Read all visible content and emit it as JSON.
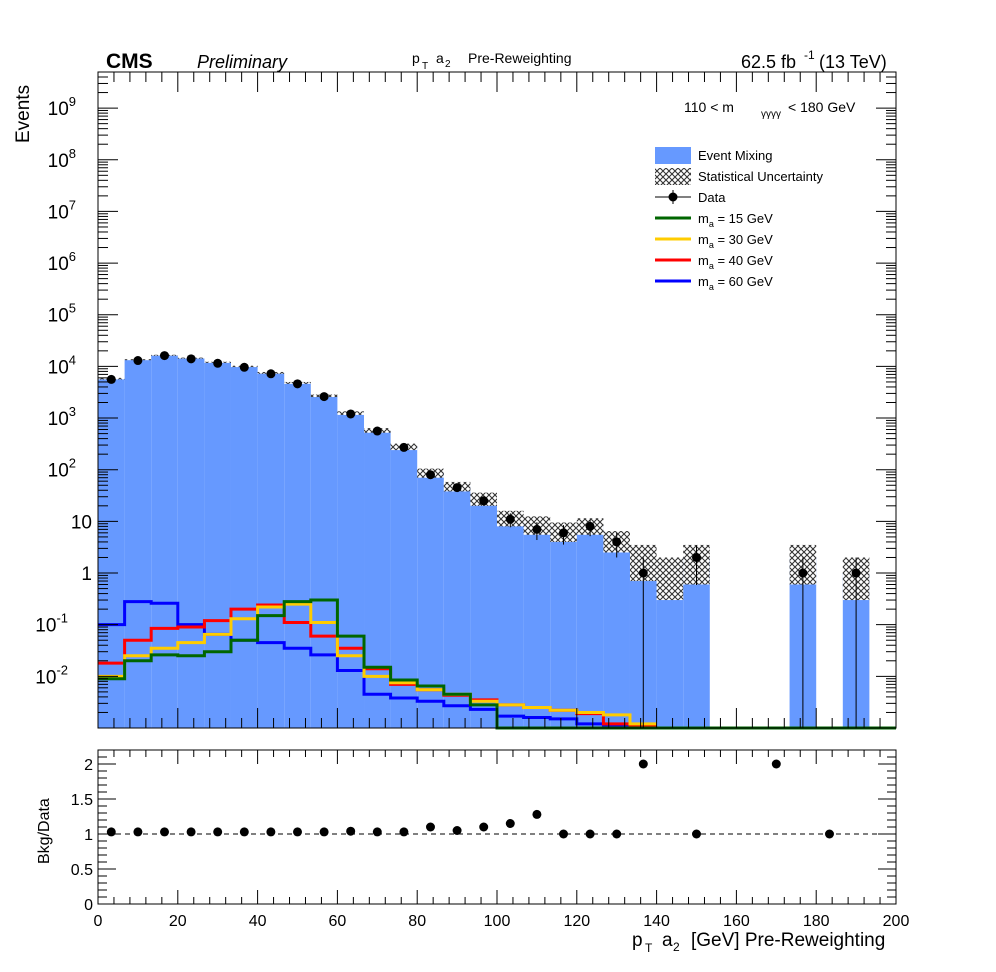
{
  "header": {
    "experiment": "CMS",
    "status": "Preliminary",
    "plot_label_main": "p",
    "plot_label_sub": "T",
    "plot_label_obj": "a",
    "plot_label_obj_sub": "2",
    "plot_label_rest": "Pre-Reweighting",
    "lumi_main": "62.5 fb",
    "lumi_sup": "-1",
    "lumi_energy": "(13 TeV)"
  },
  "selection": {
    "pre": "110 < m",
    "sub": "γγγγ",
    "post": "< 180 GeV"
  },
  "colors": {
    "event_mixing": "#6699ff",
    "ma15": "#006600",
    "ma30": "#ffcc00",
    "ma40": "#ff0000",
    "ma60": "#0000ff",
    "data": "#000000"
  },
  "legend": [
    {
      "key": "mix",
      "label": "Event Mixing"
    },
    {
      "key": "stat",
      "label": "Statistical Uncertainty"
    },
    {
      "key": "data",
      "label": "Data"
    },
    {
      "key": "ma15",
      "pre": "m",
      "sub": "a",
      "post": " = 15 GeV"
    },
    {
      "key": "ma30",
      "pre": "m",
      "sub": "a",
      "post": " = 30 GeV"
    },
    {
      "key": "ma40",
      "pre": "m",
      "sub": "a",
      "post": " = 40 GeV"
    },
    {
      "key": "ma60",
      "pre": "m",
      "sub": "a",
      "post": " = 60 GeV"
    }
  ],
  "chart_data": [
    {
      "type": "histogram",
      "yscale": "log",
      "xlim": [
        0,
        200
      ],
      "ylim": [
        0.001,
        5000000000
      ],
      "ylabel": "Events",
      "xlabel": "",
      "bin_edges": [
        0,
        6.67,
        13.33,
        20,
        26.67,
        33.33,
        40,
        46.67,
        53.33,
        60,
        66.67,
        73.33,
        80,
        86.67,
        93.33,
        100,
        106.67,
        113.33,
        120,
        126.67,
        133.33,
        140,
        146.67,
        153.33,
        160,
        166.67,
        173.33,
        180,
        186.67,
        193.33,
        200
      ],
      "y_ticks": [
        {
          "v": 0.01,
          "base": "10",
          "exp": "-2"
        },
        {
          "v": 0.1,
          "base": "10",
          "exp": "-1"
        },
        {
          "v": 1,
          "base": "1",
          "exp": ""
        },
        {
          "v": 10,
          "base": "10",
          "exp": ""
        },
        {
          "v": 100,
          "base": "10",
          "exp": "2"
        },
        {
          "v": 1000,
          "base": "10",
          "exp": "3"
        },
        {
          "v": 10000,
          "base": "10",
          "exp": "4"
        },
        {
          "v": 100000,
          "base": "10",
          "exp": "5"
        },
        {
          "v": 1000000,
          "base": "10",
          "exp": "6"
        },
        {
          "v": 10000000,
          "base": "10",
          "exp": "7"
        },
        {
          "v": 100000000,
          "base": "10",
          "exp": "8"
        },
        {
          "v": 1000000000,
          "base": "10",
          "exp": "9"
        }
      ],
      "series": [
        {
          "key": "mix",
          "name": "Event Mixing",
          "values": [
            5800,
            13500,
            16500,
            14500,
            12000,
            10000,
            7500,
            4800,
            2700,
            1250,
            580,
            280,
            88,
            48,
            28,
            12,
            9,
            6.5,
            8.5,
            4.5,
            1.5,
            0.8,
            2.0,
            0,
            0,
            0,
            2.0,
            0,
            1.0,
            0
          ]
        },
        {
          "key": "stat_lo",
          "values": [
            5600,
            13200,
            16200,
            14200,
            11700,
            9700,
            7200,
            4600,
            2550,
            1150,
            520,
            240,
            70,
            38,
            20,
            8,
            5.5,
            4.0,
            5.5,
            2.5,
            0.7,
            0.3,
            0.6,
            0,
            0,
            0,
            0.6,
            0,
            0.3,
            0
          ]
        },
        {
          "key": "stat_hi",
          "values": [
            6000,
            13800,
            16800,
            14800,
            12300,
            10300,
            7800,
            5000,
            2850,
            1350,
            640,
            320,
            105,
            58,
            36,
            16,
            12.5,
            9.5,
            11.5,
            6.5,
            3.5,
            2.0,
            3.5,
            0,
            0,
            0,
            3.5,
            0,
            2.0,
            0
          ]
        },
        {
          "key": "data",
          "name": "Data",
          "values": [
            5600,
            13000,
            16200,
            14000,
            11500,
            9600,
            7200,
            4600,
            2600,
            1200,
            560,
            270,
            80,
            45,
            25,
            11,
            7,
            6,
            8,
            4,
            1,
            0,
            2,
            0,
            0,
            0,
            1,
            0,
            1,
            0
          ]
        },
        {
          "key": "ma15",
          "name": "m_a = 15 GeV",
          "values": [
            0.009,
            0.02,
            0.026,
            0.025,
            0.03,
            0.05,
            0.15,
            0.28,
            0.3,
            0.06,
            0.015,
            0.0085,
            0.0065,
            0.0045,
            0.0028,
            0.001,
            0.001,
            0.001,
            0.001,
            0.001,
            0.001,
            0.001,
            0.001,
            0.001,
            0.001,
            0.001,
            0.001,
            0.001,
            0.001,
            0.001
          ]
        },
        {
          "key": "ma30",
          "name": "m_a = 30 GeV",
          "values": [
            0.01,
            0.025,
            0.035,
            0.045,
            0.065,
            0.13,
            0.22,
            0.25,
            0.11,
            0.025,
            0.01,
            0.0075,
            0.0055,
            0.0045,
            0.0033,
            0.0028,
            0.0025,
            0.0022,
            0.002,
            0.0018,
            0.0012
          ]
        },
        {
          "key": "ma40",
          "name": "m_a = 40 GeV",
          "values": [
            0.018,
            0.05,
            0.085,
            0.09,
            0.12,
            0.2,
            0.24,
            0.11,
            0.06,
            0.035,
            0.014,
            0.007,
            0.0055,
            0.0043,
            0.0035,
            0.0028,
            0.0025,
            0.0022,
            0.0019,
            0.0012,
            0.0011
          ]
        },
        {
          "key": "ma60",
          "name": "m_a = 60 GeV",
          "values": [
            0.1,
            0.28,
            0.26,
            0.1,
            0.065,
            0.05,
            0.045,
            0.035,
            0.026,
            0.013,
            0.0045,
            0.0038,
            0.0033,
            0.0027,
            0.0023,
            0.0017,
            0.0016,
            0.0015,
            0.0012,
            0.0011,
            0.0011
          ]
        }
      ]
    },
    {
      "type": "scatter",
      "xlim": [
        0,
        200
      ],
      "ylim": [
        0,
        2.2
      ],
      "ylabel": "Bkg/Data",
      "xlabel_pre": "p",
      "xlabel_sub": "T",
      "xlabel_obj": "a",
      "xlabel_obj_sub": "2",
      "xlabel_rest": "[GeV] Pre-Reweighting",
      "reference_line": 1,
      "x_ticks": [
        "0",
        "20",
        "40",
        "60",
        "80",
        "100",
        "120",
        "140",
        "160",
        "180",
        "200"
      ],
      "y_ticks": [
        "0",
        "0.5",
        "1",
        "1.5",
        "2"
      ],
      "x": [
        3.33,
        10,
        16.67,
        23.33,
        30,
        36.67,
        43.33,
        50,
        56.67,
        63.33,
        70,
        76.67,
        83.33,
        90,
        96.67,
        103.33,
        110,
        116.67,
        123.33,
        130,
        136.67,
        150,
        170,
        183.33
      ],
      "y": [
        1.03,
        1.03,
        1.03,
        1.03,
        1.03,
        1.03,
        1.03,
        1.03,
        1.03,
        1.04,
        1.03,
        1.03,
        1.1,
        1.05,
        1.1,
        1.15,
        1.28,
        1.0,
        1.0,
        1.0,
        2.0,
        1.0,
        2.0,
        1.0
      ]
    }
  ]
}
